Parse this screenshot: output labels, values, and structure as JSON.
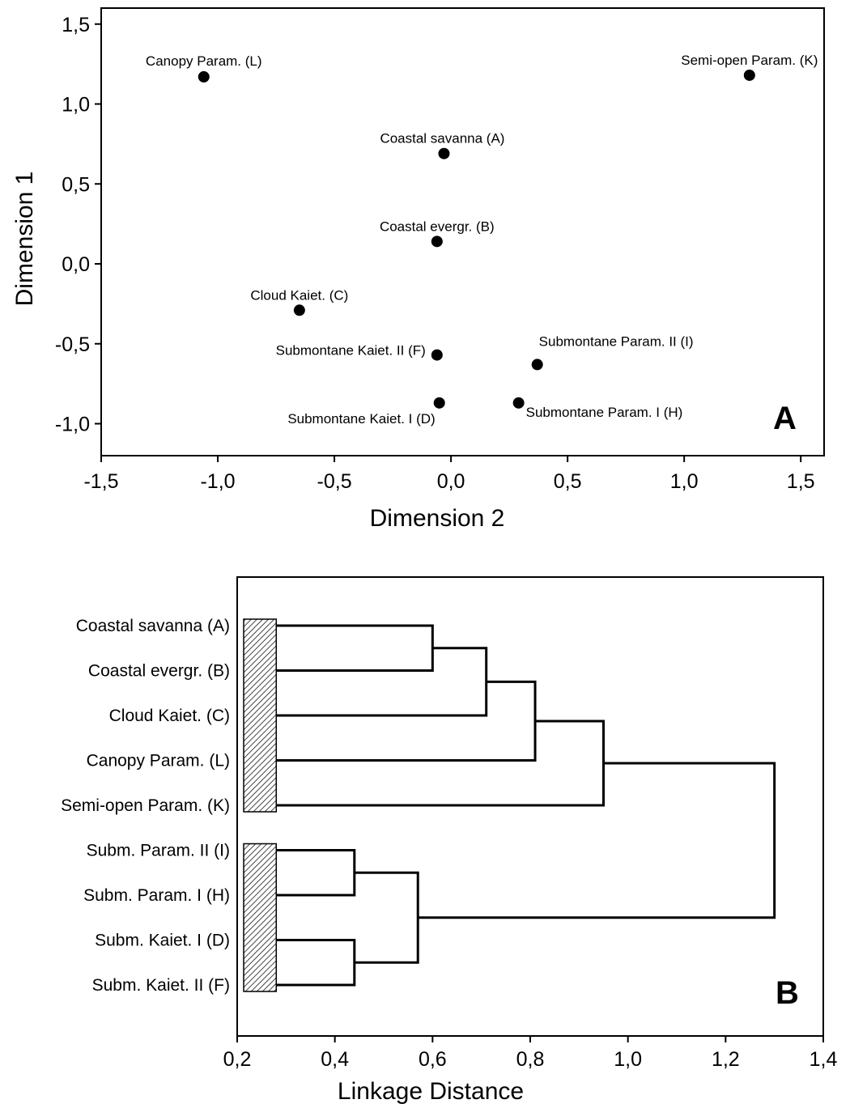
{
  "chart_data": [
    {
      "type": "scatter",
      "panel_letter": "A",
      "xlabel": "Dimension 2",
      "ylabel": "Dimension 1",
      "xlim": [
        -1.5,
        1.6
      ],
      "ylim": [
        -1.2,
        1.6
      ],
      "xticks": [
        -1.5,
        -1.0,
        -0.5,
        0.0,
        0.5,
        1.0,
        1.5
      ],
      "xtick_labels": [
        "-1,5",
        "-1,0",
        "-0,5",
        "0,0",
        "0,5",
        "1,0",
        "1,5"
      ],
      "yticks": [
        -1.0,
        -0.5,
        0.0,
        0.5,
        1.0,
        1.5
      ],
      "ytick_labels": [
        "-1,0",
        "-0,5",
        "0,0",
        "0,5",
        "1,0",
        "1,5"
      ],
      "points": [
        {
          "label": "Canopy Param. (L)",
          "x": -1.06,
          "y": 1.17
        },
        {
          "label": "Semi-open Param. (K)",
          "x": 1.28,
          "y": 1.18
        },
        {
          "label": "Coastal savanna (A)",
          "x": -0.03,
          "y": 0.69
        },
        {
          "label": "Coastal evergr. (B)",
          "x": -0.06,
          "y": 0.14
        },
        {
          "label": "Cloud Kaiet. (C)",
          "x": -0.65,
          "y": -0.29
        },
        {
          "label": "Submontane Kaiet. II (F)",
          "x": -0.06,
          "y": -0.57
        },
        {
          "label": "Submontane Param. II (I)",
          "x": 0.37,
          "y": -0.63
        },
        {
          "label": "Submontane Kaiet. I (D)",
          "x": -0.05,
          "y": -0.87
        },
        {
          "label": "Submontane Param. I (H)",
          "x": 0.29,
          "y": -0.87
        }
      ]
    },
    {
      "type": "dendrogram",
      "panel_letter": "B",
      "xlabel": "Linkage Distance",
      "xlim": [
        0.2,
        1.4
      ],
      "xticks": [
        0.2,
        0.4,
        0.6,
        0.8,
        1.0,
        1.2,
        1.4
      ],
      "xtick_labels": [
        "0,2",
        "0,4",
        "0,6",
        "0,8",
        "1,0",
        "1,2",
        "1,4"
      ],
      "leaf_base": 0.28,
      "leaves": [
        "Coastal savanna (A)",
        "Coastal evergr. (B)",
        "Cloud Kaiet. (C)",
        "Canopy Param. (L)",
        "Semi-open Param. (K)",
        "Subm. Param. II (I)",
        "Subm. Param. I (H)",
        "Subm. Kaiet. I (D)",
        "Subm. Kaiet. II (F)"
      ],
      "groups": [
        [
          0,
          4
        ],
        [
          5,
          8
        ]
      ],
      "merges": [
        {
          "a": "L0",
          "b": "L1",
          "height": 0.6
        },
        {
          "a": "N0",
          "b": "L2",
          "height": 0.71
        },
        {
          "a": "N1",
          "b": "L3",
          "height": 0.81
        },
        {
          "a": "N2",
          "b": "L4",
          "height": 0.95
        },
        {
          "a": "L5",
          "b": "L6",
          "height": 0.44
        },
        {
          "a": "L7",
          "b": "L8",
          "height": 0.44
        },
        {
          "a": "N4",
          "b": "N5",
          "height": 0.57
        },
        {
          "a": "N3",
          "b": "N6",
          "height": 1.3
        }
      ]
    }
  ]
}
